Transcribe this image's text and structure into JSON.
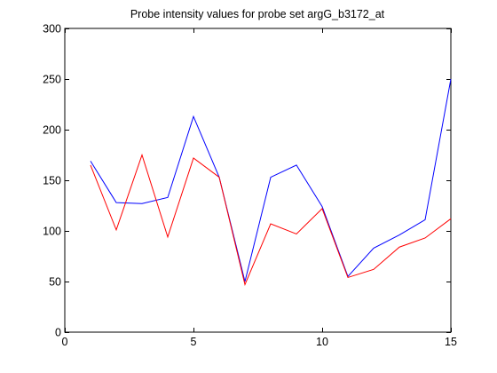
{
  "chart_data": {
    "type": "line",
    "title": "Probe intensity values for probe set argG_b3172_at",
    "xlabel": "",
    "ylabel": "",
    "xlim": [
      0,
      15
    ],
    "ylim": [
      0,
      300
    ],
    "xticks": [
      0,
      5,
      10,
      15
    ],
    "yticks": [
      0,
      50,
      100,
      150,
      200,
      250,
      300
    ],
    "grid": false,
    "x": [
      1,
      2,
      3,
      4,
      5,
      6,
      7,
      8,
      9,
      10,
      11,
      12,
      13,
      14,
      15
    ],
    "series": [
      {
        "color": "#0000ff",
        "values": [
          169,
          128,
          127,
          133,
          213,
          153,
          50,
          153,
          165,
          124,
          55,
          83,
          96,
          111,
          250
        ]
      },
      {
        "color": "#ff0000",
        "values": [
          165,
          101,
          175,
          94,
          172,
          153,
          47,
          107,
          97,
          122,
          54,
          62,
          84,
          93,
          112
        ]
      }
    ]
  }
}
